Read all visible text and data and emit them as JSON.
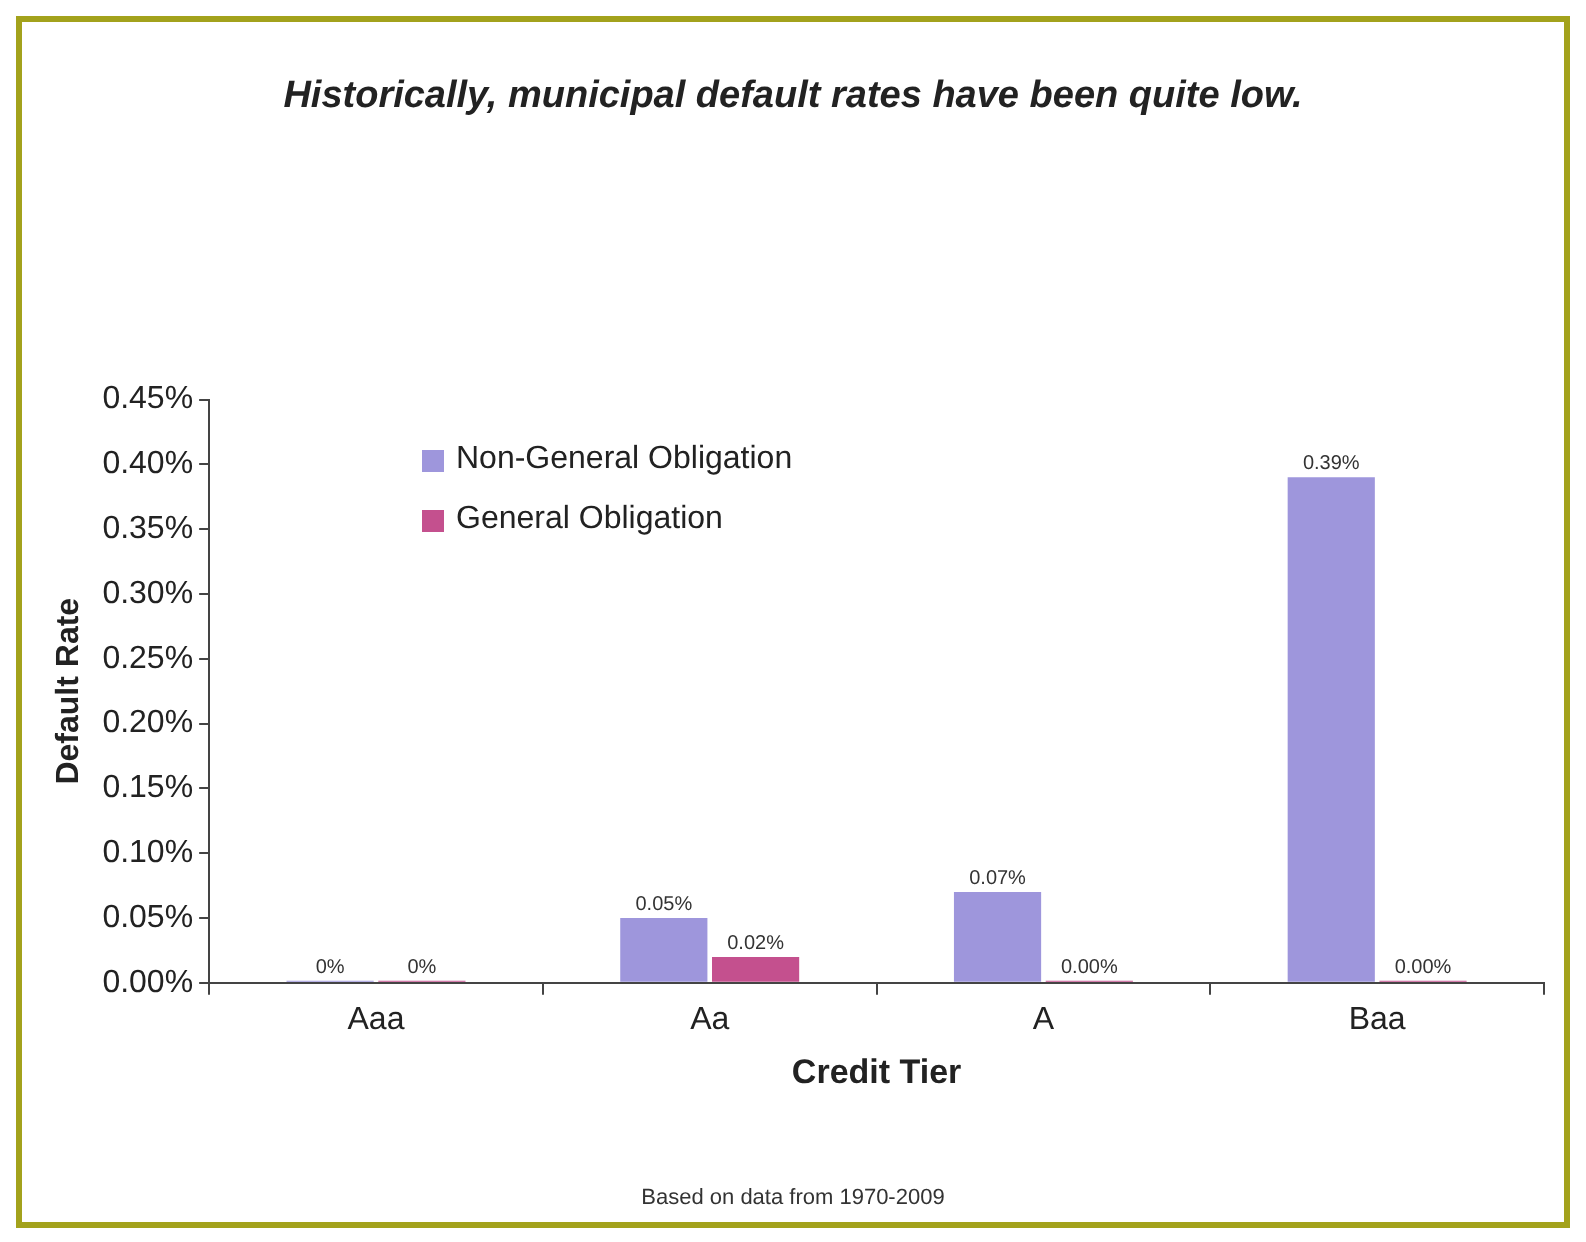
{
  "chart_data": {
    "type": "bar",
    "title": "Historically, municipal default rates have been quite low.",
    "xlabel": "Credit Tier",
    "ylabel": "Default Rate",
    "categories": [
      "Aaa",
      "Aa",
      "A",
      "Baa"
    ],
    "series": [
      {
        "name": "Non-General Obligation",
        "color": "#9e96dc",
        "values": [
          0,
          0.05,
          0.07,
          0.39
        ],
        "value_labels": [
          "0%",
          "0.05%",
          "0.07%",
          "0.39%"
        ]
      },
      {
        "name": "General Obligation",
        "color": "#c4508e",
        "values": [
          0,
          0.02,
          0,
          0
        ],
        "value_labels": [
          "0%",
          "0.02%",
          "0.00%",
          "0.00%"
        ]
      }
    ],
    "ylim": [
      0,
      0.45
    ],
    "yticks": [
      {
        "value": 0,
        "label": "0.00%"
      },
      {
        "value": 0.05,
        "label": "0.05%"
      },
      {
        "value": 0.1,
        "label": "0.10%"
      },
      {
        "value": 0.15,
        "label": "0.15%"
      },
      {
        "value": 0.2,
        "label": "0.20%"
      },
      {
        "value": 0.25,
        "label": "0.25%"
      },
      {
        "value": 0.3,
        "label": "0.30%"
      },
      {
        "value": 0.35,
        "label": "0.35%"
      },
      {
        "value": 0.4,
        "label": "0.40%"
      },
      {
        "value": 0.45,
        "label": "0.45%"
      }
    ],
    "grid": false,
    "legend": "top left",
    "annotations": [
      "Based on data from 1970-2009"
    ]
  }
}
